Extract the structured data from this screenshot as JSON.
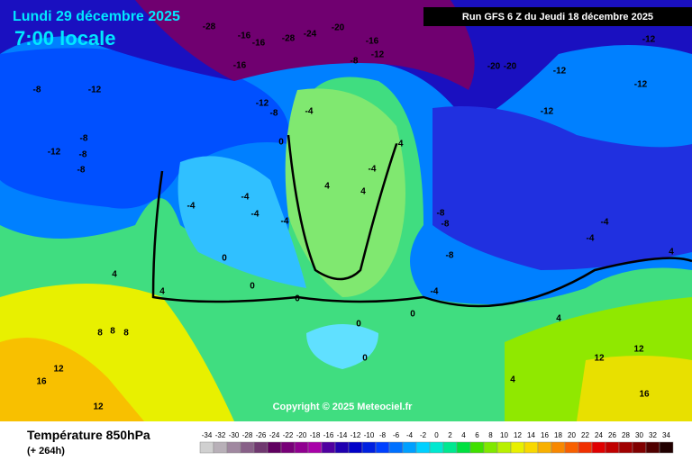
{
  "header": {
    "date": "Lundi 29 décembre 2025",
    "time": "7:00 locale",
    "run": "Run GFS 6 Z du Jeudi 18 décembre 2025",
    "copyright": "Copyright © 2025 Meteociel.fr"
  },
  "footer": {
    "title": "Température 850hPa",
    "lead": "(+ 264h)"
  },
  "map_labels": [
    "-28",
    "-16",
    "-16",
    "-28",
    "-24",
    "-20",
    "-16",
    "-12",
    "-8",
    "-16",
    "-20",
    "-20",
    "-12",
    "-12",
    "-12",
    "-12",
    "-8",
    "-12",
    "-12",
    "-8",
    "-4",
    "-12",
    "-8",
    "-8",
    "-8",
    "0",
    "-4",
    "-4",
    "4",
    "4",
    "-4",
    "-4",
    "-4",
    "-4",
    "-8",
    "-8",
    "-8",
    "-4",
    "-4",
    "4",
    "0",
    "0",
    "0",
    "-4",
    "0",
    "4",
    "4",
    "8",
    "8",
    "8",
    "12",
    "16",
    "12",
    "16",
    "12",
    "12",
    "4",
    "0",
    "0",
    "4"
  ],
  "legend": {
    "values": [
      -34,
      -32,
      -30,
      -28,
      -26,
      -24,
      -22,
      -20,
      -18,
      -16,
      -14,
      -12,
      -10,
      -8,
      -6,
      -4,
      -2,
      0,
      2,
      4,
      6,
      8,
      10,
      12,
      14,
      16,
      18,
      20,
      22,
      24,
      26,
      28,
      30,
      32,
      34
    ],
    "colors": [
      "#d0d0d0",
      "#b8b0b8",
      "#a088a0",
      "#886088",
      "#703870",
      "#600060",
      "#780078",
      "#900090",
      "#a800a8",
      "#5000a0",
      "#2000b0",
      "#0000c8",
      "#0020e0",
      "#0040ff",
      "#0070ff",
      "#00a0ff",
      "#00d0ff",
      "#00e8d0",
      "#00e890",
      "#00e040",
      "#40e000",
      "#80e800",
      "#b8f000",
      "#e8f000",
      "#f8d800",
      "#f8b000",
      "#f88800",
      "#f86000",
      "#f03000",
      "#e00000",
      "#c00000",
      "#a00000",
      "#800000",
      "#500000",
      "#200000"
    ]
  }
}
